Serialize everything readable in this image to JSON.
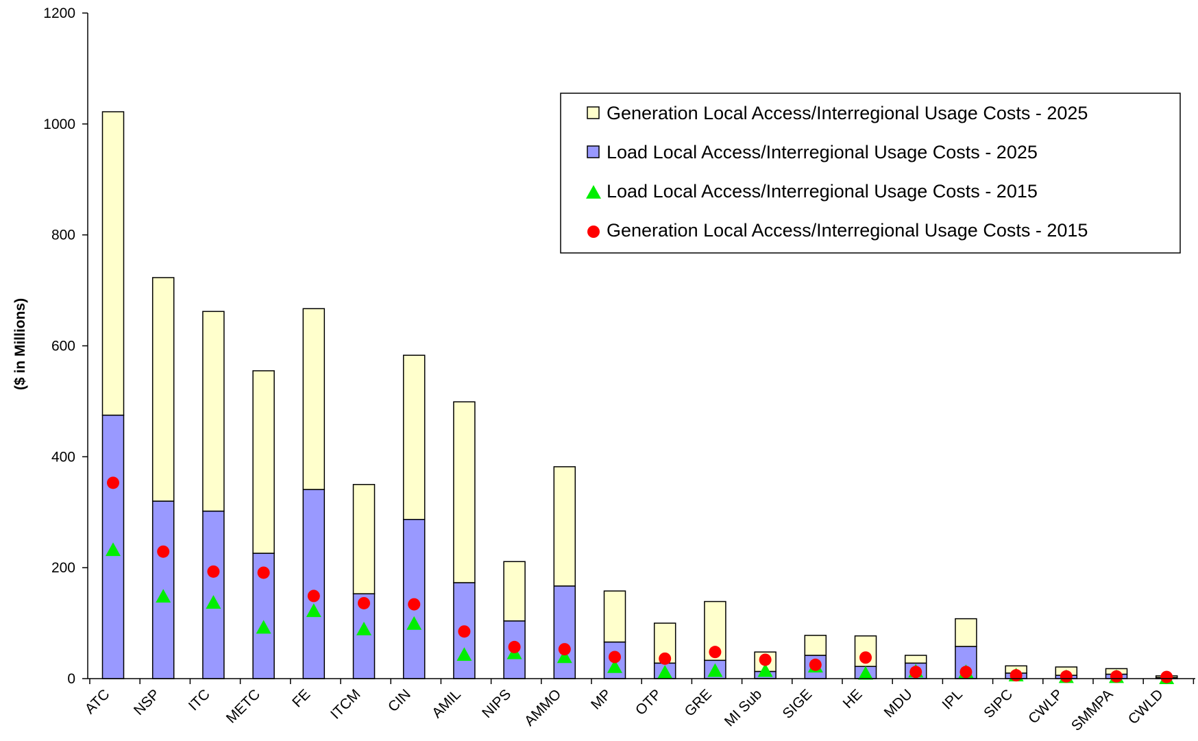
{
  "chart_data": {
    "type": "bar",
    "title": "",
    "xlabel": "",
    "ylabel": "($ in Millions)",
    "ylim": [
      0,
      1200
    ],
    "yticks": [
      0,
      200,
      400,
      600,
      800,
      1000,
      1200
    ],
    "categories": [
      "ATC",
      "NSP",
      "ITC",
      "METC",
      "FE",
      "ITCM",
      "CIN",
      "AMIL",
      "NIPS",
      "AMMO",
      "MP",
      "OTP",
      "GRE",
      "MI Sub",
      "SIGE",
      "HE",
      "MDU",
      "IPL",
      "SIPC",
      "CWLP",
      "SMMPA",
      "CWLD"
    ],
    "series": [
      {
        "name": "Load Local Access/Interregional Usage Costs - 2025",
        "kind": "stacked-bar",
        "color": "#9999ff",
        "values": [
          475,
          320,
          302,
          226,
          341,
          153,
          287,
          173,
          104,
          167,
          66,
          28,
          33,
          13,
          42,
          22,
          28,
          58,
          10,
          6,
          8,
          2
        ]
      },
      {
        "name": "Generation Local Access/Interregional Usage Costs - 2025",
        "kind": "stacked-bar",
        "color": "#ffffcc",
        "values": [
          547,
          403,
          360,
          329,
          326,
          197,
          296,
          326,
          107,
          215,
          92,
          72,
          106,
          35,
          36,
          55,
          14,
          50,
          13,
          15,
          10,
          3
        ]
      },
      {
        "name": "Load Local Access/Interregional Usage Costs - 2015",
        "kind": "marker-triangle",
        "color": "#00ee00",
        "values": [
          232,
          148,
          137,
          92,
          122,
          89,
          99,
          43,
          46,
          39,
          21,
          11,
          14,
          14,
          22,
          9,
          13,
          12,
          6,
          3,
          3,
          1
        ]
      },
      {
        "name": "Generation Local Access/Interregional Usage Costs - 2015",
        "kind": "marker-circle",
        "color": "#ff0000",
        "values": [
          353,
          229,
          193,
          191,
          149,
          136,
          134,
          85,
          57,
          53,
          39,
          36,
          48,
          34,
          25,
          38,
          12,
          12,
          6,
          4,
          4,
          3
        ]
      }
    ],
    "legend": {
      "position": "top-right",
      "order": [
        "Generation Local Access/Interregional Usage Costs - 2025",
        "Load Local Access/Interregional Usage Costs - 2025",
        "Load Local Access/Interregional Usage Costs - 2015",
        "Generation Local Access/Interregional Usage Costs - 2015"
      ]
    },
    "grid": false
  }
}
